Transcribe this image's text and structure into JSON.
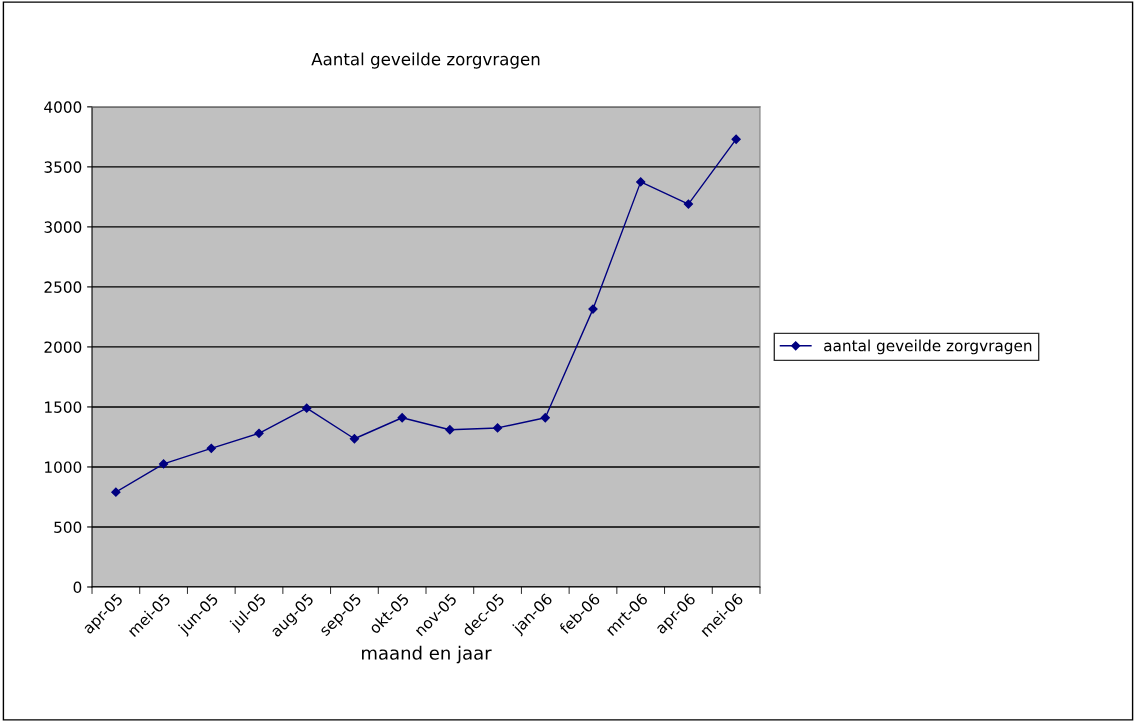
{
  "chart_data": {
    "type": "line",
    "title": "Aantal geveilde zorgvragen",
    "xlabel": "maand en jaar",
    "categories": [
      "apr-05",
      "mei-05",
      "jun-05",
      "jul-05",
      "aug-05",
      "sep-05",
      "okt-05",
      "nov-05",
      "dec-05",
      "jan-06",
      "feb-06",
      "mrt-06",
      "apr-06",
      "mei-06"
    ],
    "series": [
      {
        "name": "aantal geveilde zorgvragen",
        "color": "#000080",
        "values": [
          790,
          1025,
          1155,
          1280,
          1490,
          1235,
          1410,
          1310,
          1325,
          1410,
          2315,
          3375,
          3190,
          3730
        ]
      }
    ],
    "ylim": [
      0,
      4000
    ],
    "yticks": [
      0,
      500,
      1000,
      1500,
      2000,
      2500,
      3000,
      3500,
      4000
    ],
    "grid": "y",
    "legend": "right",
    "marker": "diamond",
    "line_style": "solid"
  }
}
